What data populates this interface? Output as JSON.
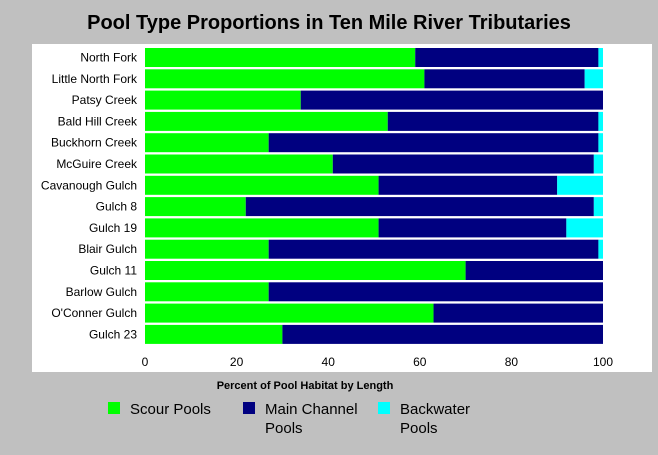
{
  "chart_data": {
    "type": "bar",
    "orientation": "horizontal",
    "stacked": true,
    "title": "Pool Type Proportions in Ten Mile River Tributaries",
    "xlabel": "Percent of Pool Habitat by Length",
    "ylabel": "",
    "xlim": [
      0,
      100
    ],
    "xticks": [
      "0",
      "20",
      "40",
      "60",
      "80",
      "100"
    ],
    "grid": false,
    "legend_position": "bottom",
    "categories": [
      "North Fork",
      "Little North Fork",
      "Patsy Creek",
      "Bald Hill Creek",
      "Buckhorn Creek",
      "McGuire Creek",
      "Cavanough Gulch",
      "Gulch 8",
      "Gulch 19",
      "Blair Gulch",
      "Gulch 11",
      "Barlow Gulch",
      "O'Conner Gulch",
      "Gulch 23"
    ],
    "series": [
      {
        "name": "Scour Pools",
        "color": "#00ff00",
        "values": [
          59,
          61,
          34,
          53,
          27,
          41,
          51,
          22,
          51,
          27,
          70,
          27,
          63,
          30
        ]
      },
      {
        "name": "Main Channel Pools",
        "color": "#000080",
        "values": [
          40,
          35,
          66,
          46,
          72,
          57,
          39,
          76,
          41,
          72,
          30,
          73,
          37,
          70
        ]
      },
      {
        "name": "Backwater Pools",
        "color": "#00ffff",
        "values": [
          1,
          4,
          0,
          1,
          1,
          2,
          10,
          2,
          8,
          1,
          0,
          0,
          0,
          0
        ]
      }
    ]
  }
}
